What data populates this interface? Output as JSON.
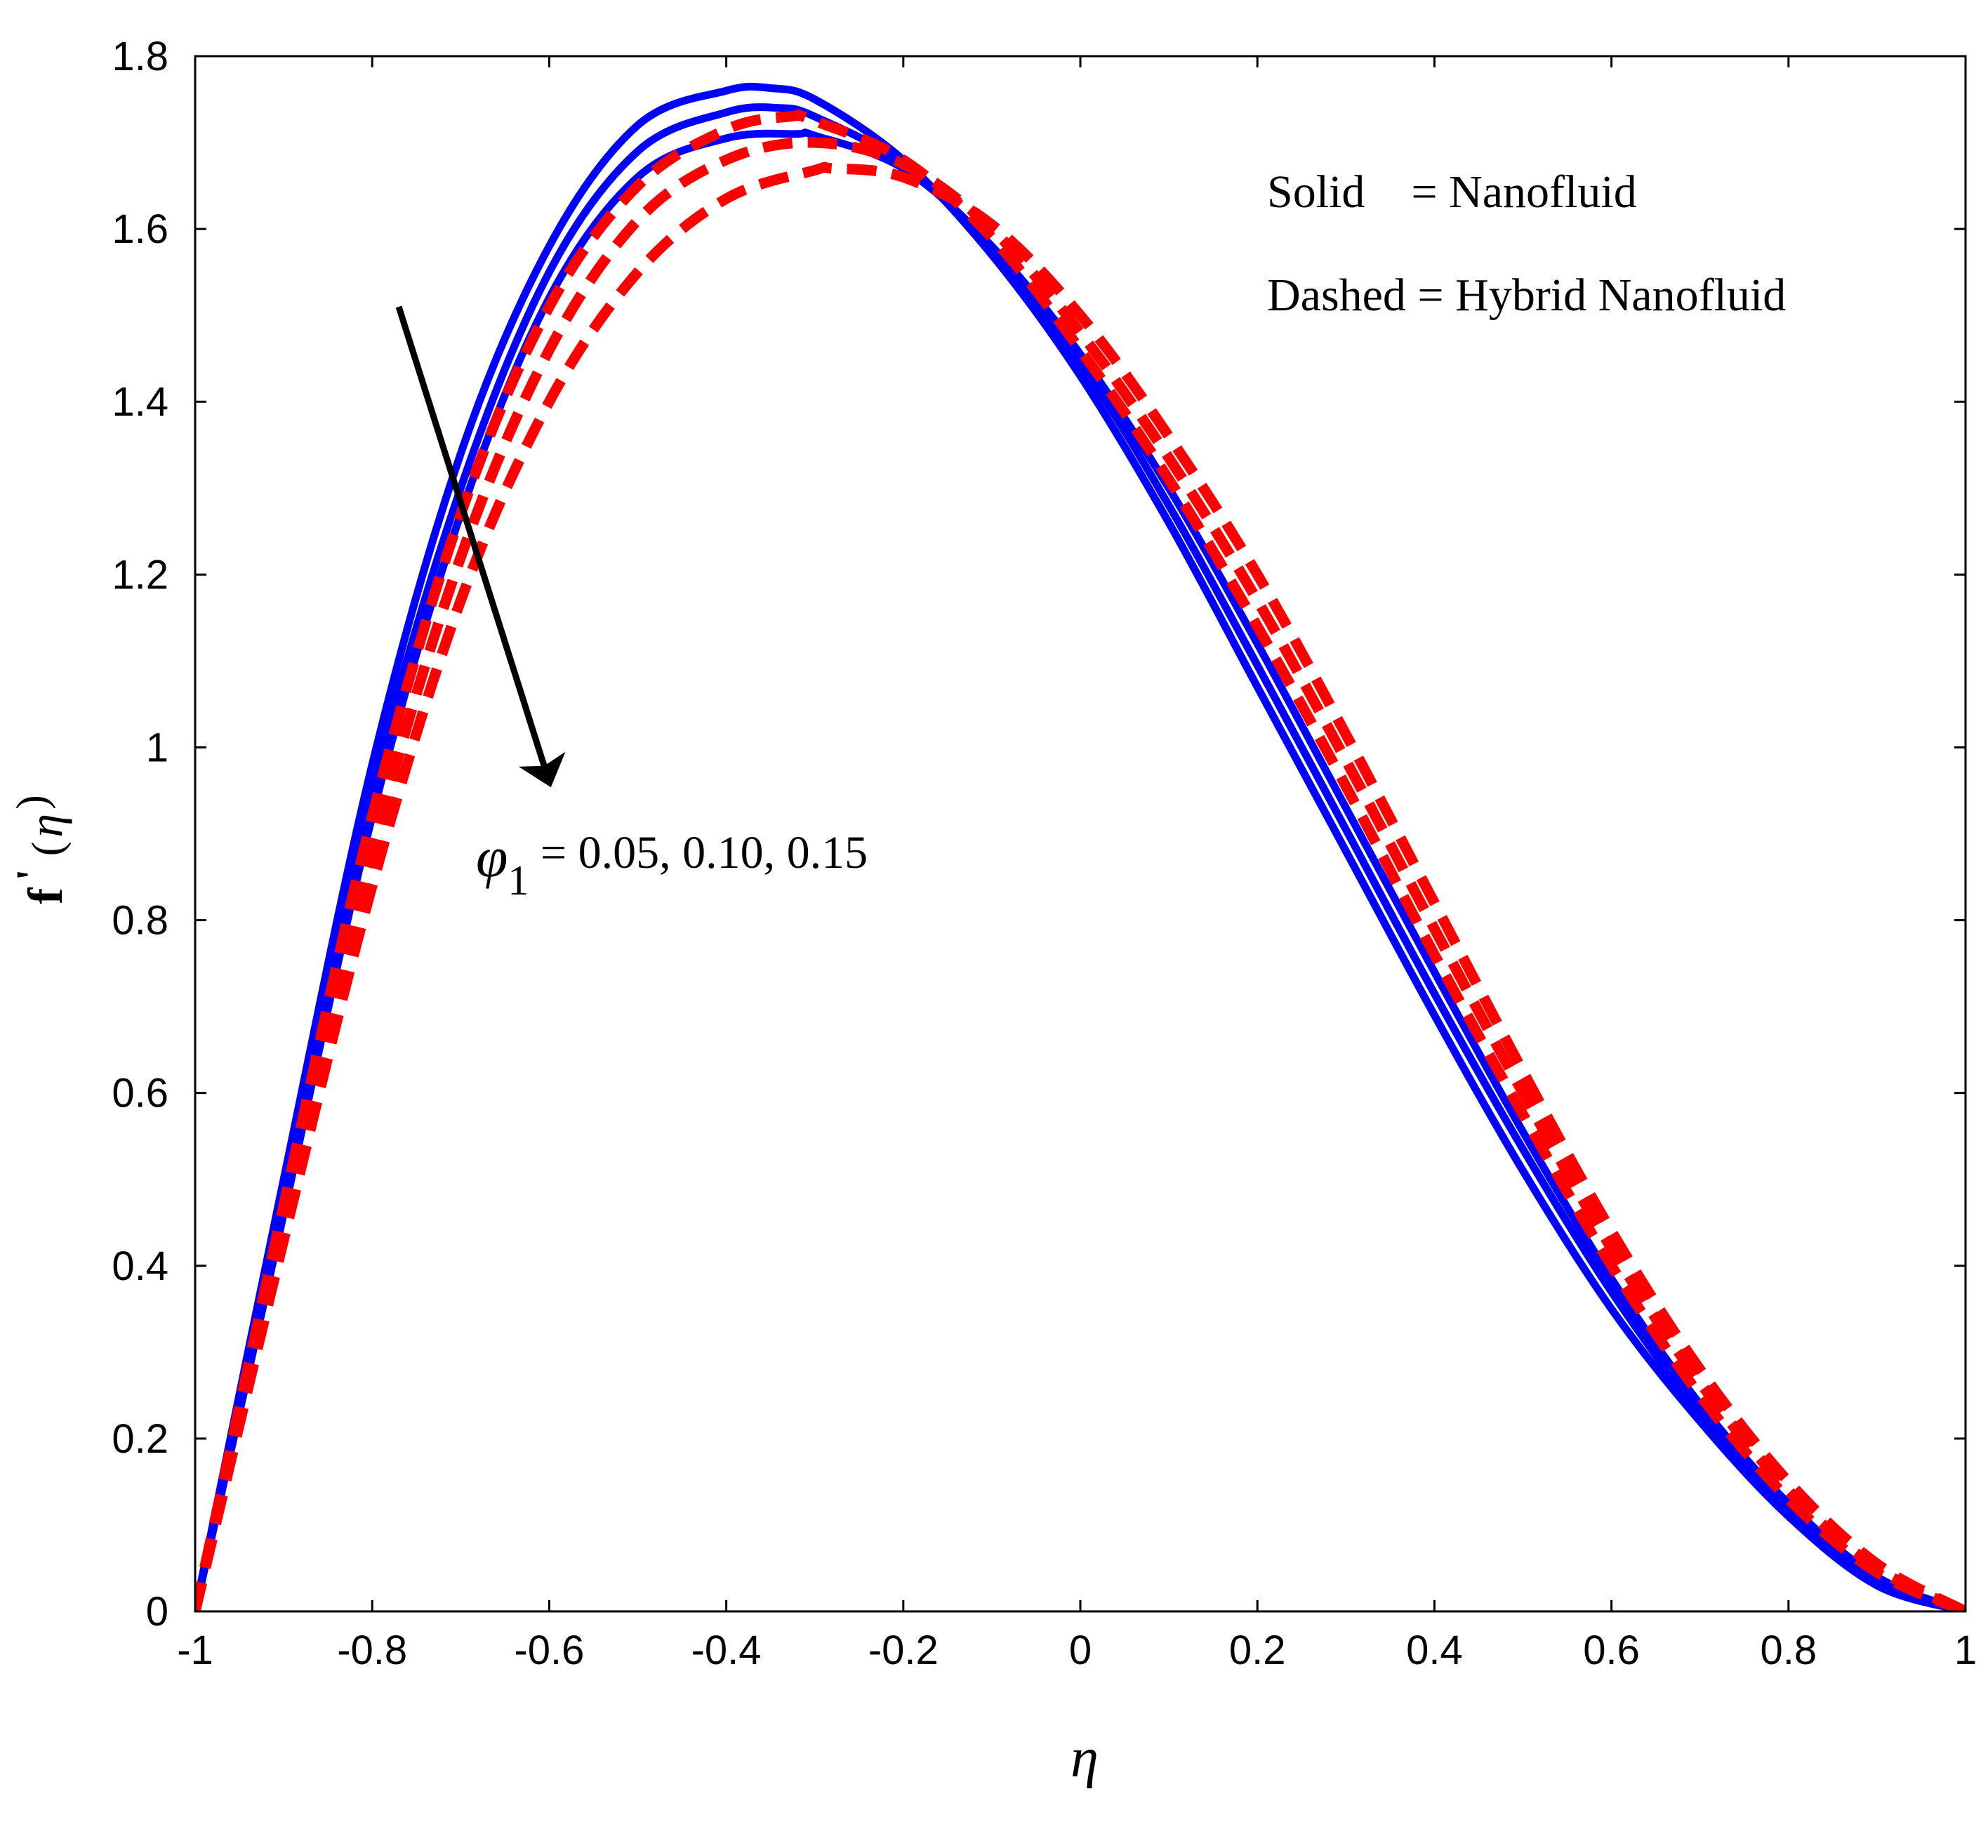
{
  "chart_data": {
    "type": "line",
    "title": "",
    "xlabel": "η",
    "ylabel_main": "f",
    "ylabel_prime": "'",
    "ylabel_open": "(",
    "ylabel_var": "η",
    "ylabel_close": ")",
    "xlim": [
      -1,
      1
    ],
    "ylim": [
      0,
      1.8
    ],
    "x_ticks": [
      -1,
      -0.8,
      -0.6,
      -0.4,
      -0.2,
      0,
      0.2,
      0.4,
      0.6,
      0.8,
      1
    ],
    "x_tick_labels": [
      "-1",
      "-0.8",
      "-0.6",
      "-0.4",
      "-0.2",
      "0",
      "0.2",
      "0.4",
      "0.6",
      "0.8",
      "1"
    ],
    "y_ticks": [
      0,
      0.2,
      0.4,
      0.6,
      0.8,
      1,
      1.2,
      1.4,
      1.6,
      1.8
    ],
    "y_tick_labels": [
      "0",
      "0.2",
      "0.4",
      "0.6",
      "0.8",
      "1",
      "1.2",
      "1.4",
      "1.6",
      "1.8"
    ],
    "grid": false,
    "legend": {
      "line1": "Solid    = Nanofluid",
      "line2": "Dashed = Hybrid Nanofluid",
      "placement": "top-right"
    },
    "annotation": {
      "symbol": "φ",
      "subscript": "1",
      "text": " = 0.05, 0.10, 0.15",
      "arrow_from": [
        -0.77,
        1.51
      ],
      "arrow_to": [
        -0.6,
        0.96
      ]
    },
    "colors": {
      "nanofluid": "#0000ff",
      "hybrid": "#ff0000",
      "axis": "#000000"
    },
    "series": [
      {
        "name": "Nanofluid φ1 = 0.05",
        "style": "solid",
        "color": "#0000ff",
        "x": [
          -1,
          -0.9,
          -0.8,
          -0.7,
          -0.6,
          -0.5,
          -0.4,
          -0.35,
          -0.3,
          -0.2,
          -0.1,
          0,
          0.1,
          0.2,
          0.3,
          0.4,
          0.5,
          0.6,
          0.7,
          0.8,
          0.9,
          1
        ],
        "y": [
          0,
          0.5,
          0.98,
          1.34,
          1.58,
          1.72,
          1.76,
          1.763,
          1.75,
          1.68,
          1.57,
          1.43,
          1.26,
          1.07,
          0.88,
          0.69,
          0.51,
          0.35,
          0.22,
          0.11,
          0.03,
          0
        ]
      },
      {
        "name": "Nanofluid φ1 = 0.10",
        "style": "solid",
        "color": "#0000ff",
        "x": [
          -1,
          -0.9,
          -0.8,
          -0.7,
          -0.6,
          -0.5,
          -0.4,
          -0.34,
          -0.3,
          -0.2,
          -0.1,
          0,
          0.1,
          0.2,
          0.3,
          0.4,
          0.5,
          0.6,
          0.7,
          0.8,
          0.9,
          1
        ],
        "y": [
          0,
          0.48,
          0.95,
          1.3,
          1.55,
          1.69,
          1.735,
          1.74,
          1.73,
          1.675,
          1.575,
          1.445,
          1.28,
          1.095,
          0.905,
          0.715,
          0.535,
          0.37,
          0.23,
          0.12,
          0.035,
          0
        ]
      },
      {
        "name": "Nanofluid φ1 = 0.15",
        "style": "solid",
        "color": "#0000ff",
        "x": [
          -1,
          -0.9,
          -0.8,
          -0.7,
          -0.6,
          -0.5,
          -0.4,
          -0.32,
          -0.3,
          -0.2,
          -0.1,
          0,
          0.1,
          0.2,
          0.3,
          0.4,
          0.5,
          0.6,
          0.7,
          0.8,
          0.9,
          1
        ],
        "y": [
          0,
          0.46,
          0.92,
          1.27,
          1.52,
          1.66,
          1.705,
          1.71,
          1.708,
          1.67,
          1.58,
          1.455,
          1.3,
          1.12,
          0.93,
          0.74,
          0.555,
          0.385,
          0.24,
          0.125,
          0.04,
          0
        ]
      },
      {
        "name": "Hybrid Nanofluid φ1 = 0.05",
        "style": "dashed",
        "color": "#ff0000",
        "x": [
          -1,
          -0.9,
          -0.8,
          -0.7,
          -0.6,
          -0.5,
          -0.4,
          -0.33,
          -0.3,
          -0.2,
          -0.1,
          0,
          0.1,
          0.2,
          0.3,
          0.4,
          0.5,
          0.6,
          0.7,
          0.8,
          0.9,
          1
        ],
        "y": [
          0,
          0.47,
          0.92,
          1.27,
          1.51,
          1.65,
          1.715,
          1.73,
          1.725,
          1.68,
          1.59,
          1.46,
          1.31,
          1.14,
          0.955,
          0.76,
          0.575,
          0.4,
          0.25,
          0.13,
          0.045,
          0
        ]
      },
      {
        "name": "Hybrid Nanofluid φ1 = 0.10",
        "style": "dashed",
        "color": "#ff0000",
        "x": [
          -1,
          -0.9,
          -0.8,
          -0.7,
          -0.6,
          -0.5,
          -0.4,
          -0.3,
          -0.2,
          -0.1,
          0,
          0.1,
          0.2,
          0.3,
          0.4,
          0.5,
          0.6,
          0.7,
          0.8,
          0.9,
          1
        ],
        "y": [
          0,
          0.45,
          0.88,
          1.22,
          1.46,
          1.61,
          1.68,
          1.7,
          1.675,
          1.6,
          1.48,
          1.335,
          1.17,
          0.985,
          0.79,
          0.6,
          0.42,
          0.265,
          0.14,
          0.05,
          0
        ]
      },
      {
        "name": "Hybrid Nanofluid φ1 = 0.15",
        "style": "dashed",
        "color": "#ff0000",
        "x": [
          -1,
          -0.9,
          -0.8,
          -0.7,
          -0.6,
          -0.5,
          -0.4,
          -0.3,
          -0.28,
          -0.2,
          -0.1,
          0,
          0.1,
          0.2,
          0.3,
          0.4,
          0.5,
          0.6,
          0.7,
          0.8,
          0.9,
          1
        ],
        "y": [
          0,
          0.43,
          0.84,
          1.17,
          1.4,
          1.55,
          1.635,
          1.668,
          1.67,
          1.66,
          1.605,
          1.5,
          1.36,
          1.2,
          1.015,
          0.82,
          0.625,
          0.44,
          0.28,
          0.15,
          0.055,
          0
        ]
      }
    ]
  }
}
